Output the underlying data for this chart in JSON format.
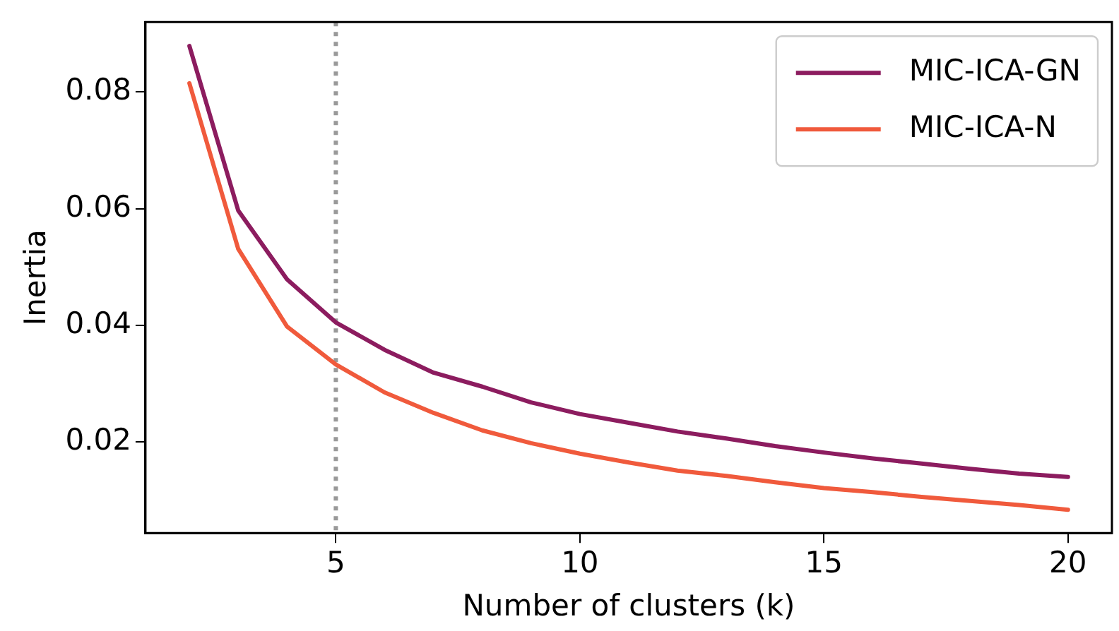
{
  "chart_data": {
    "type": "line",
    "xlabel": "Number of clusters (k)",
    "ylabel": "Inertia",
    "x": [
      2,
      3,
      4,
      5,
      6,
      7,
      8,
      9,
      10,
      11,
      12,
      13,
      14,
      15,
      16,
      17,
      18,
      19,
      20
    ],
    "xlim": [
      1.1,
      20.9
    ],
    "xticks": [
      5,
      10,
      15,
      20
    ],
    "ylim": [
      0.0044,
      0.092
    ],
    "yticks": [
      0.02,
      0.04,
      0.06,
      0.08
    ],
    "grid": false,
    "legend": "top right",
    "marker": "none",
    "series": [
      {
        "name": "MIC-ICA-GN",
        "color": "#8c1c5f",
        "values": [
          0.0879,
          0.0597,
          0.0479,
          0.0405,
          0.0358,
          0.0319,
          0.0295,
          0.0268,
          0.0248,
          0.0233,
          0.0218,
          0.0206,
          0.0193,
          0.0182,
          0.0172,
          0.0163,
          0.0154,
          0.0146,
          0.014
        ]
      },
      {
        "name": "MIC-ICA-N",
        "color": "#f05a3c",
        "values": [
          0.0815,
          0.0531,
          0.0398,
          0.0333,
          0.0285,
          0.025,
          0.022,
          0.0198,
          0.018,
          0.0165,
          0.0151,
          0.0142,
          0.0131,
          0.0121,
          0.0114,
          0.0106,
          0.0099,
          0.0092,
          0.0084
        ]
      }
    ],
    "ref_lines": [
      {
        "axis": "x",
        "value": 5,
        "color": "#999999",
        "line_style": "dotted"
      }
    ]
  }
}
